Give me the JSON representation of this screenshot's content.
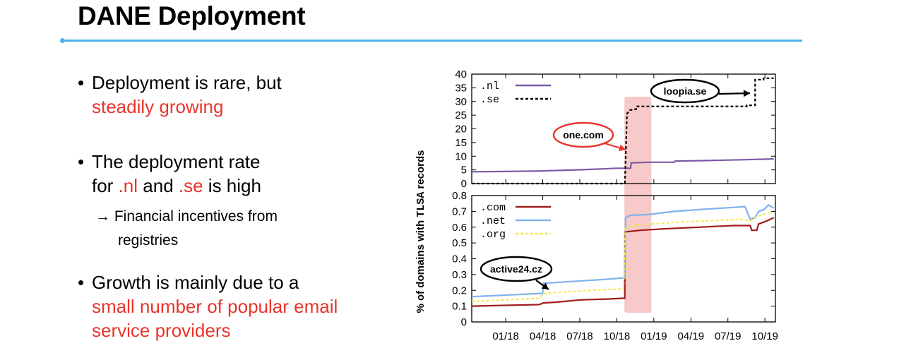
{
  "slide": {
    "title": "DANE Deployment"
  },
  "bullets": [
    {
      "marker": "•",
      "line1": "Deployment is rare, but",
      "line2_red": "steadily growing"
    },
    {
      "marker": "•",
      "line1": "The deployment rate",
      "line2_pre": "for ",
      "line2_red1": ".nl",
      "line2_mid": " and ",
      "line2_red2": ".se",
      "line2_post": " is high"
    },
    {
      "marker": "•",
      "line1": "Growth is mainly due to a",
      "line2_red": "small number of popular email",
      "line3_red": "service providers"
    }
  ],
  "sub_bullet": {
    "arrow": "→",
    "line1": "Financial incentives from",
    "line2": "registries"
  },
  "colors": {
    "accent_red": "#e8352b",
    "title_rule": "#4fb3e6",
    "nl": "#7b5aa6",
    "se": "#000000",
    "com": "#a01c1c",
    "net": "#7fb2ec",
    "org": "#f3e94a",
    "highlight": "#f6c0c0"
  },
  "chart_data": {
    "type": "line",
    "ylabel_pre": "% of domains with ",
    "ylabel_mono": "TLSA",
    "ylabel_post": " records",
    "xticks": [
      "01/18",
      "04/18",
      "07/18",
      "10/18",
      "01/19",
      "04/19",
      "07/19",
      "10/19"
    ],
    "highlight_window": [
      "2018-12-12",
      "2019-01-05"
    ],
    "panels": [
      {
        "ylim": [
          0,
          40
        ],
        "yticks": [
          "0",
          "5",
          "10",
          "15",
          "20",
          "25",
          "30",
          "35",
          "40"
        ],
        "series": [
          {
            "name": ".nl",
            "style": "solid",
            "color": "#7b5aa6",
            "points": [
              [
                0.0,
                4.3
              ],
              [
                2.0,
                4.4
              ],
              [
                4.0,
                4.6
              ],
              [
                5.2,
                4.8
              ],
              [
                6.2,
                5.0
              ],
              [
                7.5,
                5.3
              ],
              [
                8.6,
                5.6
              ],
              [
                9.42,
                5.6
              ],
              [
                9.45,
                7.6
              ],
              [
                10.5,
                7.8
              ],
              [
                12.0,
                7.8
              ],
              [
                12.05,
                8.2
              ],
              [
                14.0,
                8.4
              ],
              [
                16.0,
                8.7
              ],
              [
                17.3,
                8.9
              ],
              [
                17.9,
                9.0
              ]
            ]
          },
          {
            "name": ".se",
            "style": "dashed",
            "color": "#000000",
            "points": [
              [
                0.0,
                0.0
              ],
              [
                9.08,
                0.0
              ],
              [
                9.2,
                25.5
              ],
              [
                9.35,
                26.8
              ],
              [
                9.75,
                27.2
              ],
              [
                9.75,
                28.2
              ],
              [
                16.3,
                28.2
              ],
              [
                16.3,
                28.6
              ],
              [
                16.8,
                28.6
              ],
              [
                16.8,
                38.0
              ],
              [
                17.3,
                38.0
              ],
              [
                17.3,
                38.5
              ],
              [
                17.9,
                38.5
              ]
            ]
          }
        ],
        "annotations": [
          {
            "label": "one.com",
            "style": "red-ellipse"
          },
          {
            "label": "loopia.se",
            "style": "black-ellipse"
          }
        ]
      },
      {
        "ylim": [
          0,
          0.8
        ],
        "yticks": [
          "0",
          "0.1",
          "0.2",
          "0.3",
          "0.4",
          "0.5",
          "0.6",
          "0.7",
          "0.8"
        ],
        "series": [
          {
            "name": ".com",
            "style": "solid",
            "color": "#a01c1c",
            "points": [
              [
                0.0,
                0.1
              ],
              [
                2.0,
                0.105
              ],
              [
                4.0,
                0.11
              ],
              [
                4.25,
                0.12
              ],
              [
                5.0,
                0.125
              ],
              [
                6.5,
                0.14
              ],
              [
                8.0,
                0.145
              ],
              [
                9.07,
                0.15
              ],
              [
                9.08,
                0.57
              ],
              [
                10.0,
                0.58
              ],
              [
                11.5,
                0.59
              ],
              [
                13.5,
                0.6
              ],
              [
                15.5,
                0.61
              ],
              [
                16.5,
                0.61
              ],
              [
                16.6,
                0.58
              ],
              [
                16.9,
                0.58
              ],
              [
                17.0,
                0.62
              ],
              [
                17.5,
                0.64
              ],
              [
                17.9,
                0.66
              ]
            ]
          },
          {
            "name": ".net",
            "style": "solid",
            "color": "#7fb2ec",
            "points": [
              [
                0.0,
                0.16
              ],
              [
                2.0,
                0.17
              ],
              [
                4.0,
                0.18
              ],
              [
                4.2,
                0.18
              ],
              [
                4.25,
                0.245
              ],
              [
                5.0,
                0.25
              ],
              [
                6.5,
                0.26
              ],
              [
                8.0,
                0.27
              ],
              [
                9.08,
                0.28
              ],
              [
                9.12,
                0.66
              ],
              [
                9.4,
                0.675
              ],
              [
                10.5,
                0.68
              ],
              [
                12.0,
                0.7
              ],
              [
                14.0,
                0.715
              ],
              [
                15.5,
                0.725
              ],
              [
                16.2,
                0.73
              ],
              [
                16.5,
                0.65
              ],
              [
                16.8,
                0.66
              ],
              [
                17.0,
                0.7
              ],
              [
                17.3,
                0.71
              ],
              [
                17.6,
                0.74
              ],
              [
                17.9,
                0.72
              ]
            ]
          },
          {
            "name": ".org",
            "style": "dashed",
            "color": "#f3e94a",
            "points": [
              [
                0.0,
                0.13
              ],
              [
                2.0,
                0.14
              ],
              [
                4.0,
                0.15
              ],
              [
                4.25,
                0.18
              ],
              [
                5.5,
                0.19
              ],
              [
                7.0,
                0.2
              ],
              [
                9.0,
                0.21
              ],
              [
                9.1,
                0.6
              ],
              [
                10.0,
                0.615
              ],
              [
                12.0,
                0.63
              ],
              [
                14.0,
                0.64
              ],
              [
                16.0,
                0.65
              ],
              [
                16.5,
                0.64
              ],
              [
                17.0,
                0.67
              ],
              [
                17.5,
                0.69
              ],
              [
                17.9,
                0.69
              ]
            ]
          }
        ],
        "annotations": [
          {
            "label": "active24.cz",
            "style": "black-ellipse"
          }
        ]
      }
    ]
  }
}
